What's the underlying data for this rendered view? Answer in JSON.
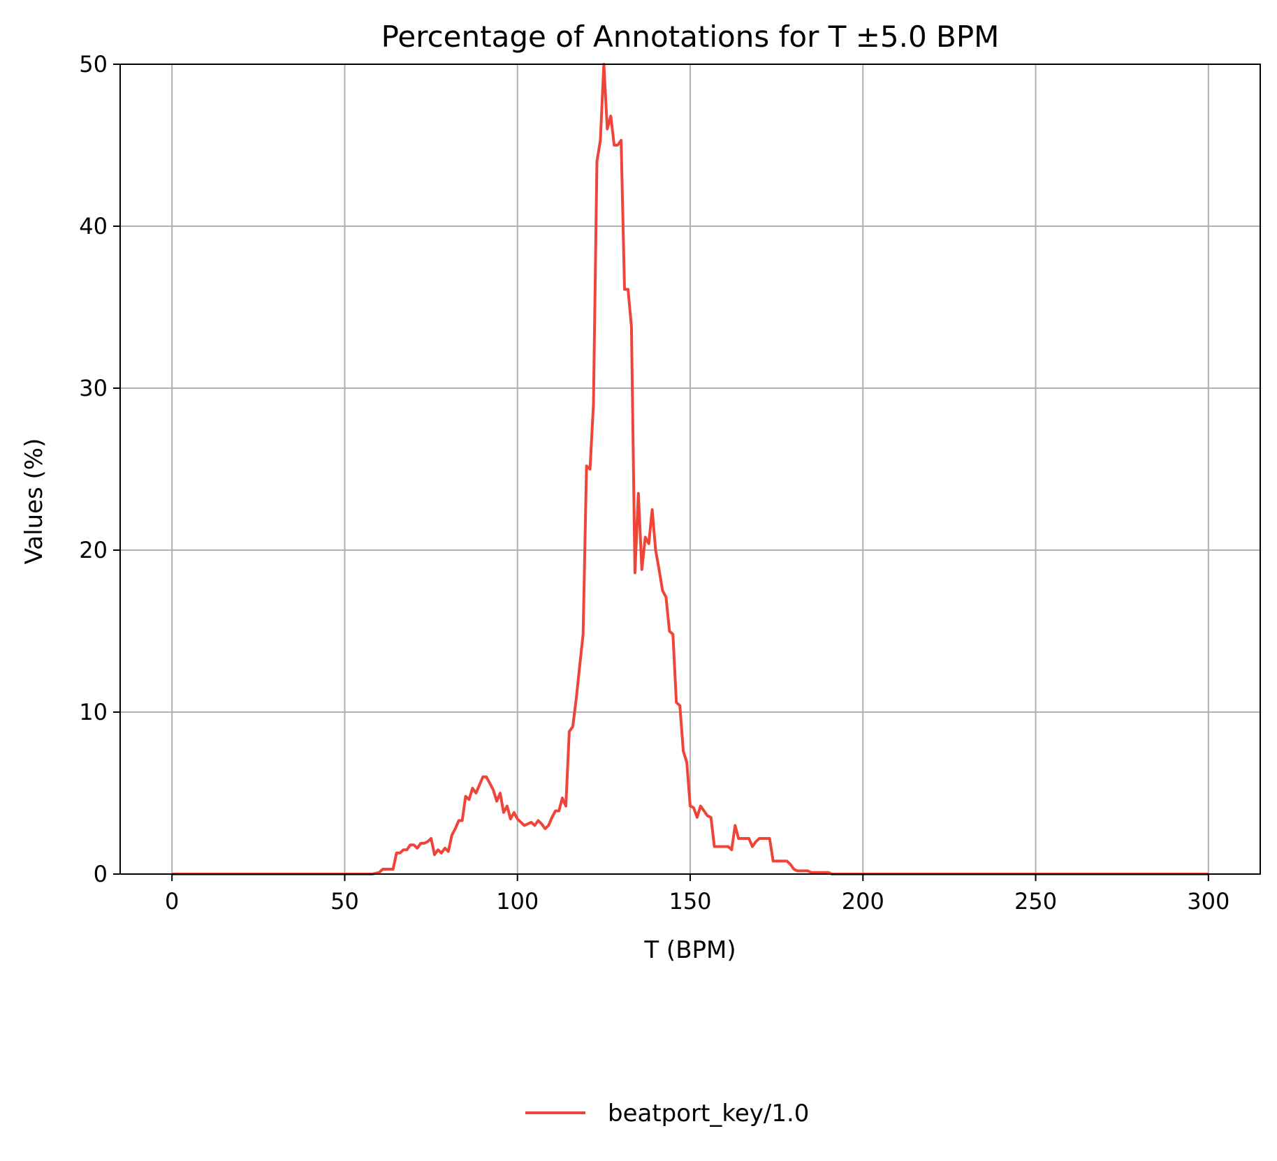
{
  "chart_data": {
    "type": "line",
    "title": "Percentage of Annotations for T ±5.0 BPM",
    "xlabel": "T (BPM)",
    "ylabel": "Values (%)",
    "xlim": [
      -15,
      315
    ],
    "ylim": [
      0,
      50
    ],
    "xticks": [
      0,
      50,
      100,
      150,
      200,
      250,
      300
    ],
    "yticks": [
      0,
      10,
      20,
      30,
      40,
      50
    ],
    "xtick_labels": [
      "0",
      "50",
      "100",
      "150",
      "200",
      "250",
      "300"
    ],
    "ytick_labels": [
      "0",
      "10",
      "20",
      "30",
      "40",
      "50"
    ],
    "grid": true,
    "legend": {
      "position": "below",
      "entries": [
        "beatport_key/1.0"
      ]
    },
    "colors": {
      "series": "#f04438",
      "grid": "#b0b0b0",
      "axes": "#000000"
    },
    "series": [
      {
        "name": "beatport_key/1.0",
        "x": [
          0,
          10,
          20,
          30,
          40,
          50,
          58,
          60,
          61,
          62,
          63,
          64,
          65,
          66,
          67,
          68,
          69,
          70,
          71,
          72,
          73,
          74,
          75,
          76,
          77,
          78,
          79,
          80,
          81,
          82,
          83,
          84,
          85,
          86,
          87,
          88,
          89,
          90,
          91,
          92,
          93,
          94,
          95,
          96,
          97,
          98,
          99,
          100,
          101,
          102,
          103,
          104,
          105,
          106,
          107,
          108,
          109,
          110,
          111,
          112,
          113,
          114,
          115,
          116,
          117,
          118,
          119,
          120,
          121,
          122,
          123,
          124,
          125,
          126,
          127,
          128,
          129,
          130,
          131,
          132,
          133,
          134,
          135,
          136,
          137,
          138,
          139,
          140,
          141,
          142,
          143,
          144,
          145,
          146,
          147,
          148,
          149,
          150,
          151,
          152,
          153,
          154,
          155,
          156,
          157,
          158,
          159,
          160,
          161,
          162,
          163,
          164,
          165,
          166,
          167,
          168,
          169,
          170,
          171,
          172,
          173,
          174,
          175,
          176,
          177,
          178,
          179,
          180,
          181,
          182,
          183,
          184,
          185,
          186,
          187,
          188,
          189,
          190,
          191,
          192,
          200,
          250,
          300
        ],
        "values": [
          0,
          0,
          0,
          0,
          0,
          0,
          0,
          0.1,
          0.3,
          0.3,
          0.3,
          0.3,
          1.3,
          1.3,
          1.5,
          1.5,
          1.8,
          1.8,
          1.6,
          1.9,
          1.9,
          2.0,
          2.2,
          1.2,
          1.5,
          1.3,
          1.6,
          1.4,
          2.4,
          2.8,
          3.3,
          3.3,
          4.8,
          4.6,
          5.3,
          5.0,
          5.5,
          6.0,
          6.0,
          5.6,
          5.2,
          4.5,
          5.0,
          3.8,
          4.2,
          3.4,
          3.8,
          3.4,
          3.2,
          3.0,
          3.1,
          3.2,
          3.0,
          3.3,
          3.1,
          2.8,
          3.0,
          3.5,
          3.9,
          3.9,
          4.7,
          4.2,
          8.8,
          9.1,
          10.8,
          12.8,
          14.8,
          25.2,
          25.0,
          29.0,
          44.0,
          45.3,
          50.0,
          46.0,
          46.8,
          45.0,
          45.0,
          45.3,
          36.1,
          36.1,
          33.8,
          18.6,
          23.5,
          18.8,
          20.8,
          20.4,
          22.5,
          20.0,
          18.8,
          17.5,
          17.1,
          15.0,
          14.8,
          10.6,
          10.4,
          7.6,
          6.9,
          4.2,
          4.1,
          3.5,
          4.2,
          3.9,
          3.6,
          3.5,
          1.7,
          1.7,
          1.7,
          1.7,
          1.7,
          1.5,
          3.0,
          2.2,
          2.2,
          2.2,
          2.2,
          1.7,
          2.0,
          2.2,
          2.2,
          2.2,
          2.2,
          0.8,
          0.8,
          0.8,
          0.8,
          0.8,
          0.6,
          0.3,
          0.2,
          0.2,
          0.2,
          0.2,
          0.1,
          0.1,
          0.1,
          0.1,
          0.1,
          0.1,
          0,
          0,
          0,
          0,
          0
        ]
      }
    ]
  }
}
